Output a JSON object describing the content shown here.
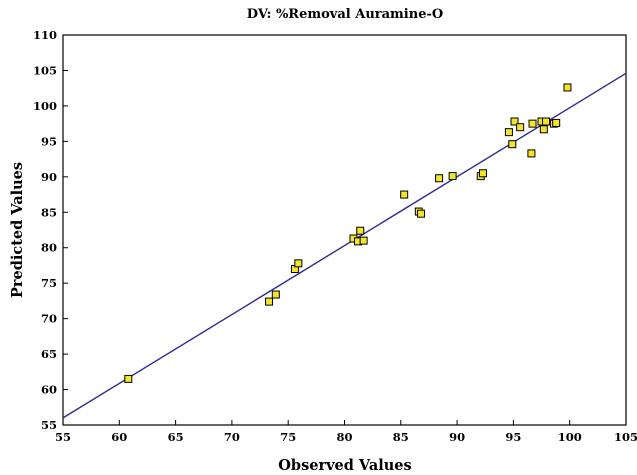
{
  "chart_data": {
    "type": "scatter",
    "title": "DV: %Removal Auramine-O",
    "xlabel": "Observed Values",
    "ylabel": "Predicted Values",
    "xlim": [
      55,
      105
    ],
    "ylim": [
      55,
      110
    ],
    "xticks": [
      "55",
      "60",
      "65",
      "70",
      "75",
      "80",
      "85",
      "90",
      "95",
      "100",
      "105"
    ],
    "yticks": [
      "55",
      "60",
      "65",
      "70",
      "75",
      "80",
      "85",
      "90",
      "95",
      "100",
      "105",
      "110"
    ],
    "grid": false,
    "marker_color": "#f2e52b",
    "marker_edge_color": "#000000",
    "fit_line_color": "#2e2e8f",
    "fit_line": {
      "x": [
        55,
        105
      ],
      "y": [
        56.0,
        104.6
      ]
    },
    "points": [
      {
        "x": 60.8,
        "y": 61.5
      },
      {
        "x": 73.3,
        "y": 72.4
      },
      {
        "x": 73.9,
        "y": 73.4
      },
      {
        "x": 75.6,
        "y": 77.0
      },
      {
        "x": 75.9,
        "y": 77.8
      },
      {
        "x": 80.8,
        "y": 81.3
      },
      {
        "x": 81.2,
        "y": 80.9
      },
      {
        "x": 81.4,
        "y": 82.4
      },
      {
        "x": 81.7,
        "y": 81.0
      },
      {
        "x": 85.3,
        "y": 87.5
      },
      {
        "x": 86.6,
        "y": 85.1
      },
      {
        "x": 86.8,
        "y": 84.8
      },
      {
        "x": 88.4,
        "y": 89.8
      },
      {
        "x": 89.6,
        "y": 90.1
      },
      {
        "x": 92.1,
        "y": 90.1
      },
      {
        "x": 92.3,
        "y": 90.5
      },
      {
        "x": 94.6,
        "y": 96.3
      },
      {
        "x": 94.9,
        "y": 94.6
      },
      {
        "x": 95.1,
        "y": 97.8
      },
      {
        "x": 95.6,
        "y": 97.0
      },
      {
        "x": 96.6,
        "y": 93.3
      },
      {
        "x": 96.7,
        "y": 97.5
      },
      {
        "x": 97.5,
        "y": 97.8
      },
      {
        "x": 97.7,
        "y": 96.7
      },
      {
        "x": 97.9,
        "y": 97.8
      },
      {
        "x": 98.6,
        "y": 97.5
      },
      {
        "x": 98.8,
        "y": 97.6
      },
      {
        "x": 99.8,
        "y": 102.6
      }
    ]
  }
}
